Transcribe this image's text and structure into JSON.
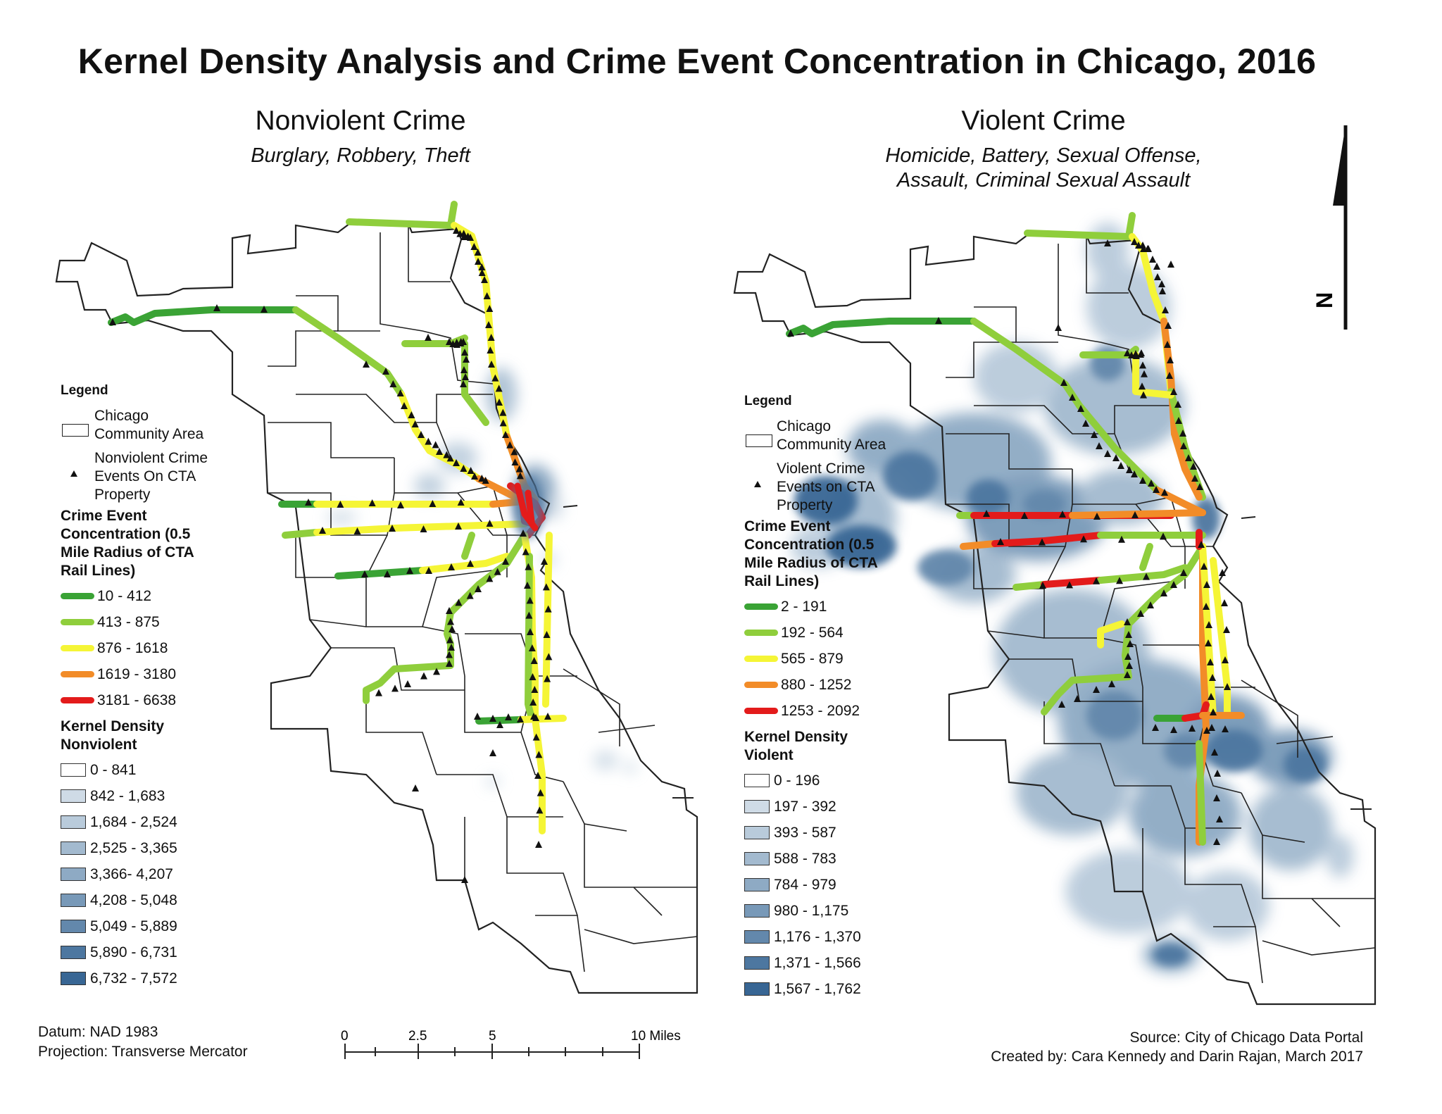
{
  "title": "Kernel Density Analysis and Crime Event Concentration in Chicago, 2016",
  "maps": [
    {
      "title": "Nonviolent Crime",
      "subtitle": "Burglary, Robbery, Theft",
      "legend": {
        "heading": "Legend",
        "community_area_label": "Chicago Community Area",
        "events_label": "Nonviolent Crime Events On CTA Property",
        "concentration_title": "Crime Event Concentration (0.5 Mile Radius of CTA Rail Lines)",
        "concentration_classes": [
          {
            "label": "10 - 412",
            "color": "#3aa335"
          },
          {
            "label": "413 - 875",
            "color": "#8fce3c"
          },
          {
            "label": "876 - 1618",
            "color": "#f5f536"
          },
          {
            "label": "1619 - 3180",
            "color": "#f28c28"
          },
          {
            "label": "3181 - 6638",
            "color": "#e31b1b"
          }
        ],
        "density_title": "Kernel Density Nonviolent",
        "density_classes": [
          {
            "label": "0 - 841",
            "color": "#ffffff"
          },
          {
            "label": "842 - 1,683",
            "color": "#cfdbe6"
          },
          {
            "label": "1,684 - 2,524",
            "color": "#b9cbdb"
          },
          {
            "label": "2,525 - 3,365",
            "color": "#a3bacf"
          },
          {
            "label": "3,366- 4,207",
            "color": "#8eaac4"
          },
          {
            "label": "4,208 - 5,048",
            "color": "#7899b8"
          },
          {
            "label": "5,049 - 5,889",
            "color": "#6388ac"
          },
          {
            "label": "5,890 - 6,731",
            "color": "#4d77a0"
          },
          {
            "label": "6,732 - 7,572",
            "color": "#386694"
          }
        ]
      }
    },
    {
      "title": "Violent Crime",
      "subtitle_line1": "Homicide, Battery, Sexual Offense,",
      "subtitle_line2": "Assault, Criminal Sexual Assault",
      "legend": {
        "heading": "Legend",
        "community_area_label": "Chicago Community Area",
        "events_label": "Violent Crime Events on CTA Property",
        "concentration_title": "Crime Event Concentration (0.5 Mile Radius of CTA Rail Lines)",
        "concentration_classes": [
          {
            "label": "2 - 191",
            "color": "#3aa335"
          },
          {
            "label": "192 - 564",
            "color": "#8fce3c"
          },
          {
            "label": "565 - 879",
            "color": "#f5f536"
          },
          {
            "label": "880 - 1252",
            "color": "#f28c28"
          },
          {
            "label": "1253 - 2092",
            "color": "#e31b1b"
          }
        ],
        "density_title": "Kernel Density Violent",
        "density_classes": [
          {
            "label": "0 - 196",
            "color": "#ffffff"
          },
          {
            "label": "197 - 392",
            "color": "#cfdbe6"
          },
          {
            "label": "393 - 587",
            "color": "#b9cbdb"
          },
          {
            "label": "588 - 783",
            "color": "#a3bacf"
          },
          {
            "label": "784 - 979",
            "color": "#8eaac4"
          },
          {
            "label": "980 - 1,175",
            "color": "#7899b8"
          },
          {
            "label": "1,176 - 1,370",
            "color": "#6388ac"
          },
          {
            "label": "1,371 - 1,566",
            "color": "#4d77a0"
          },
          {
            "label": "1,567 - 1,762",
            "color": "#386694"
          }
        ]
      }
    }
  ],
  "footer": {
    "datum": "Datum: NAD 1983",
    "projection": "Projection: Transverse Mercator",
    "source": "Source: City of Chicago Data Portal",
    "credit": "Created by: Cara Kennedy and Darin Rajan, March 2017"
  },
  "scale_bar": {
    "ticks": [
      "0",
      "2.5",
      "5",
      "10 Miles"
    ]
  },
  "north_arrow": {
    "label": "N"
  }
}
